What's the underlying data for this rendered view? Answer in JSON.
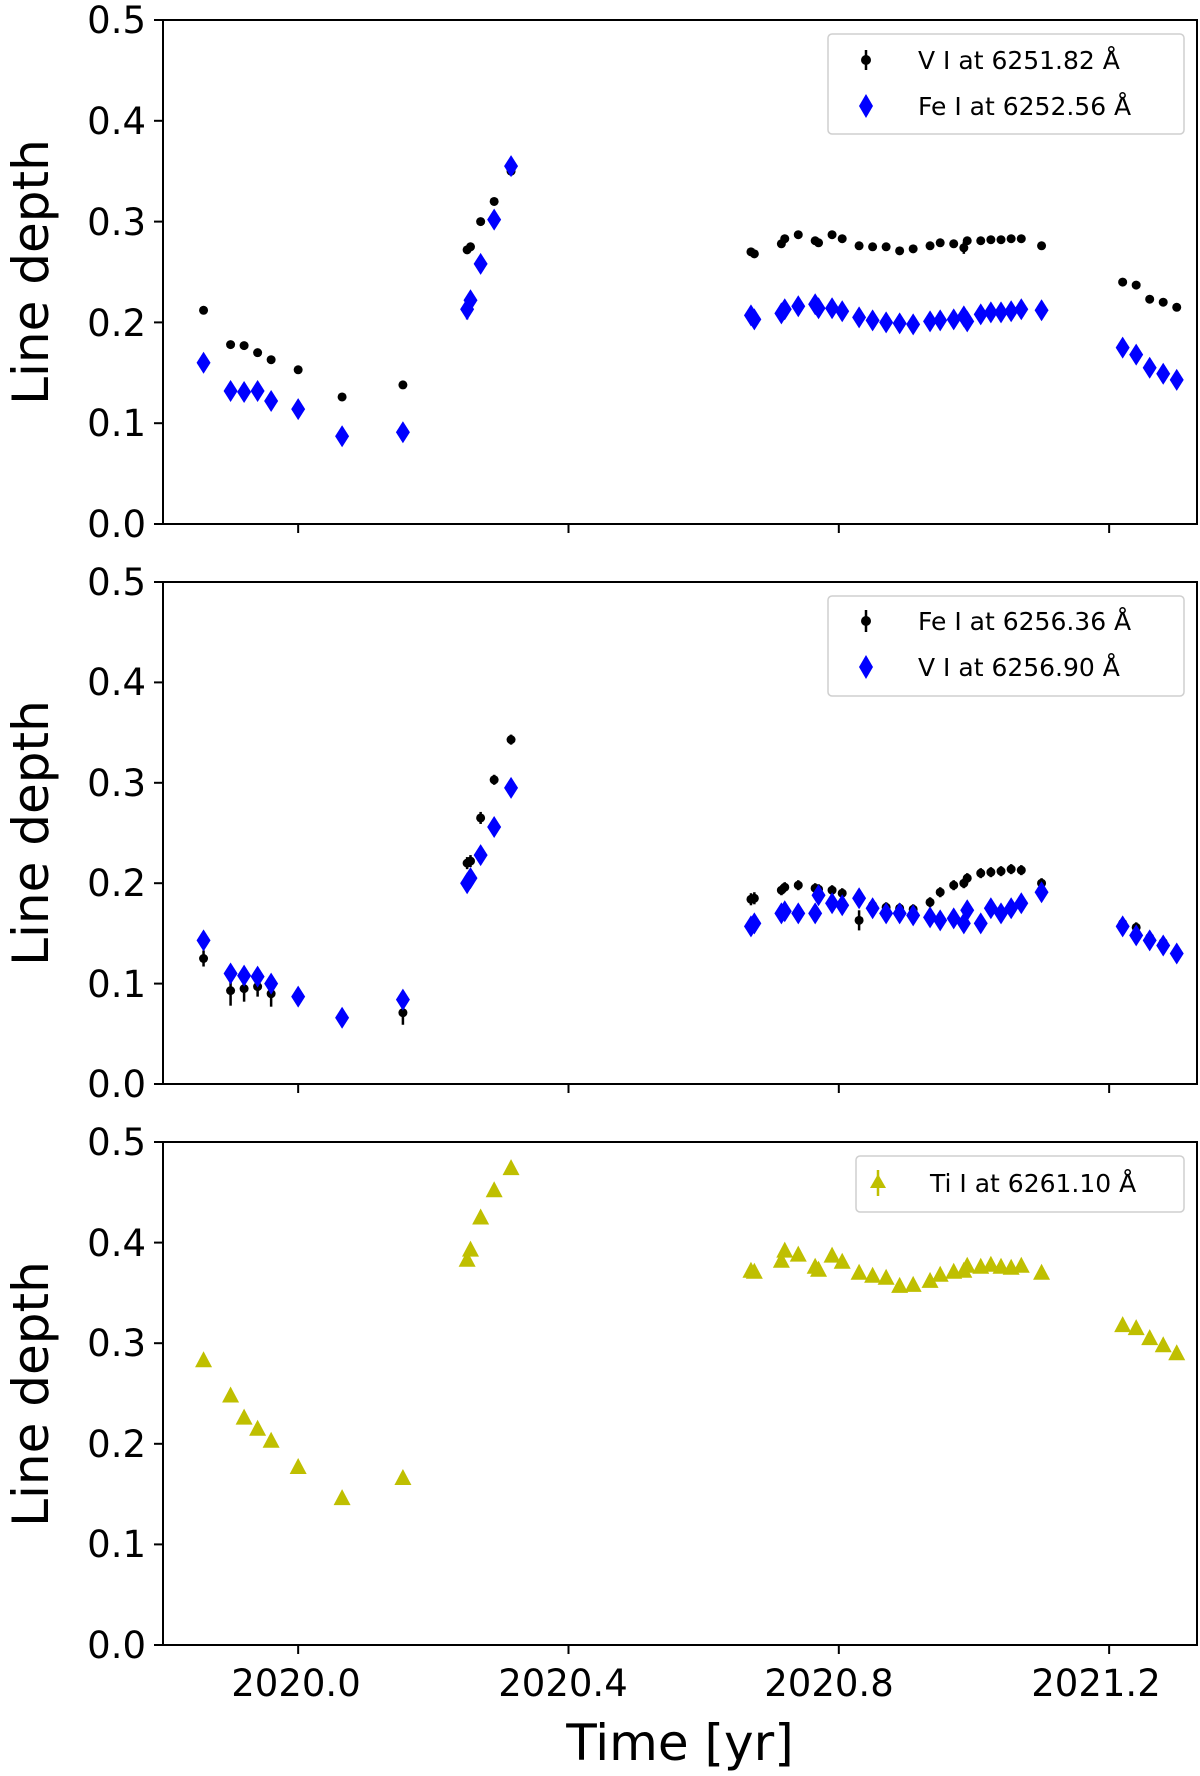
{
  "chart_data": [
    {
      "type": "scatter",
      "title": "",
      "xlabel": "",
      "ylabel": "Line depth",
      "ylim": [
        0.0,
        0.5
      ],
      "xlim": [
        2019.8,
        2021.33
      ],
      "xticks": [
        2020.0,
        2020.4,
        2020.8,
        2021.2
      ],
      "xtick_labels": [
        "",
        "",
        "",
        ""
      ],
      "yticks": [
        0.0,
        0.1,
        0.2,
        0.3,
        0.4,
        0.5
      ],
      "ytick_labels": [
        "0.0",
        "0.1",
        "0.2",
        "0.3",
        "0.4",
        "0.5"
      ],
      "legend_position": "top-right",
      "series": [
        {
          "name": "V I at 6251.82 Å",
          "marker": "circle",
          "color": "#000000",
          "x": [
            2019.86,
            2019.9,
            2019.92,
            2019.94,
            2019.96,
            2020.0,
            2020.065,
            2020.155,
            2020.25,
            2020.255,
            2020.27,
            2020.29,
            2020.315,
            2020.67,
            2020.675,
            2020.715,
            2020.72,
            2020.74,
            2020.765,
            2020.77,
            2020.79,
            2020.805,
            2020.83,
            2020.85,
            2020.87,
            2020.89,
            2020.91,
            2020.935,
            2020.95,
            2020.97,
            2020.985,
            2020.99,
            2021.01,
            2021.025,
            2021.04,
            2021.055,
            2021.07,
            2021.1,
            2021.22,
            2021.24,
            2021.26,
            2021.28,
            2021.3
          ],
          "y": [
            0.212,
            0.178,
            0.177,
            0.17,
            0.163,
            0.153,
            0.126,
            0.138,
            0.272,
            0.275,
            0.3,
            0.32,
            0.35,
            0.27,
            0.268,
            0.278,
            0.283,
            0.287,
            0.281,
            0.279,
            0.287,
            0.283,
            0.276,
            0.275,
            0.275,
            0.271,
            0.273,
            0.276,
            0.279,
            0.278,
            0.274,
            0.281,
            0.281,
            0.282,
            0.282,
            0.283,
            0.283,
            0.276,
            0.24,
            0.237,
            0.223,
            0.22,
            0.215
          ],
          "yerr": [
            0.003,
            0.003,
            0.003,
            0.003,
            0.003,
            0.003,
            0.003,
            0.003,
            0.004,
            0.004,
            0.003,
            0.003,
            0.003,
            0.003,
            0.003,
            0.003,
            0.003,
            0.003,
            0.003,
            0.003,
            0.003,
            0.003,
            0.003,
            0.003,
            0.003,
            0.003,
            0.003,
            0.003,
            0.003,
            0.003,
            0.006,
            0.003,
            0.003,
            0.003,
            0.003,
            0.003,
            0.003,
            0.003,
            0.003,
            0.003,
            0.003,
            0.003,
            0.003
          ]
        },
        {
          "name": "Fe I at 6252.56 Å",
          "marker": "diamond",
          "color": "#0000ff",
          "x": [
            2019.86,
            2019.9,
            2019.92,
            2019.94,
            2019.96,
            2020.0,
            2020.065,
            2020.155,
            2020.25,
            2020.255,
            2020.27,
            2020.29,
            2020.315,
            2020.67,
            2020.675,
            2020.715,
            2020.72,
            2020.74,
            2020.765,
            2020.77,
            2020.79,
            2020.805,
            2020.83,
            2020.85,
            2020.87,
            2020.89,
            2020.91,
            2020.935,
            2020.95,
            2020.97,
            2020.985,
            2020.99,
            2021.01,
            2021.025,
            2021.04,
            2021.055,
            2021.07,
            2021.1,
            2021.22,
            2021.24,
            2021.26,
            2021.28,
            2021.3
          ],
          "y": [
            0.16,
            0.132,
            0.131,
            0.132,
            0.122,
            0.114,
            0.087,
            0.091,
            0.213,
            0.222,
            0.258,
            0.302,
            0.355,
            0.207,
            0.203,
            0.209,
            0.213,
            0.216,
            0.218,
            0.214,
            0.214,
            0.211,
            0.205,
            0.202,
            0.2,
            0.199,
            0.198,
            0.201,
            0.202,
            0.203,
            0.206,
            0.201,
            0.208,
            0.21,
            0.21,
            0.211,
            0.213,
            0.212,
            0.175,
            0.168,
            0.155,
            0.149,
            0.143
          ],
          "yerr": [
            0.005,
            0.005,
            0.005,
            0.005,
            0.005,
            0.005,
            0.005,
            0.005,
            0.01,
            0.007,
            0.005,
            0.005,
            0.005,
            0.005,
            0.005,
            0.005,
            0.005,
            0.005,
            0.005,
            0.005,
            0.005,
            0.005,
            0.005,
            0.005,
            0.005,
            0.005,
            0.005,
            0.005,
            0.005,
            0.005,
            0.008,
            0.005,
            0.005,
            0.005,
            0.005,
            0.005,
            0.005,
            0.005,
            0.005,
            0.005,
            0.005,
            0.005,
            0.005
          ]
        }
      ]
    },
    {
      "type": "scatter",
      "title": "",
      "xlabel": "",
      "ylabel": "Line depth",
      "ylim": [
        0.0,
        0.5
      ],
      "xlim": [
        2019.8,
        2021.33
      ],
      "xticks": [
        2020.0,
        2020.4,
        2020.8,
        2021.2
      ],
      "xtick_labels": [
        "",
        "",
        "",
        ""
      ],
      "yticks": [
        0.0,
        0.1,
        0.2,
        0.3,
        0.4,
        0.5
      ],
      "ytick_labels": [
        "0.0",
        "0.1",
        "0.2",
        "0.3",
        "0.4",
        "0.5"
      ],
      "legend_position": "top-right",
      "series": [
        {
          "name": "Fe I at 6256.36 Å",
          "marker": "circle",
          "color": "#000000",
          "x": [
            2019.86,
            2019.9,
            2019.92,
            2019.94,
            2019.96,
            2020.0,
            2020.065,
            2020.155,
            2020.25,
            2020.255,
            2020.27,
            2020.29,
            2020.315,
            2020.67,
            2020.675,
            2020.715,
            2020.72,
            2020.74,
            2020.765,
            2020.77,
            2020.79,
            2020.805,
            2020.83,
            2020.85,
            2020.87,
            2020.89,
            2020.91,
            2020.935,
            2020.95,
            2020.97,
            2020.985,
            2020.99,
            2021.01,
            2021.025,
            2021.04,
            2021.055,
            2021.07,
            2021.1,
            2021.22,
            2021.24,
            2021.26,
            2021.28,
            2021.3
          ],
          "y": [
            0.125,
            0.093,
            0.095,
            0.097,
            0.09,
            0.087,
            0.065,
            0.071,
            0.22,
            0.222,
            0.265,
            0.303,
            0.343,
            0.184,
            0.185,
            0.193,
            0.196,
            0.198,
            0.195,
            0.194,
            0.193,
            0.19,
            0.163,
            0.178,
            0.176,
            0.175,
            0.174,
            0.181,
            0.191,
            0.198,
            0.2,
            0.205,
            0.21,
            0.211,
            0.212,
            0.214,
            0.213,
            0.2,
            0.16,
            0.156,
            0.146,
            0.141,
            0.13
          ],
          "yerr": [
            0.008,
            0.015,
            0.013,
            0.01,
            0.013,
            0.008,
            0.006,
            0.012,
            0.006,
            0.006,
            0.006,
            0.005,
            0.005,
            0.006,
            0.006,
            0.005,
            0.005,
            0.005,
            0.005,
            0.005,
            0.005,
            0.005,
            0.01,
            0.005,
            0.005,
            0.005,
            0.005,
            0.005,
            0.005,
            0.005,
            0.005,
            0.005,
            0.005,
            0.005,
            0.005,
            0.005,
            0.005,
            0.005,
            0.005,
            0.005,
            0.005,
            0.005,
            0.005
          ]
        },
        {
          "name": "V I at 6256.90 Å",
          "marker": "diamond",
          "color": "#0000ff",
          "x": [
            2019.86,
            2019.9,
            2019.92,
            2019.94,
            2019.96,
            2020.0,
            2020.065,
            2020.155,
            2020.25,
            2020.255,
            2020.27,
            2020.29,
            2020.315,
            2020.67,
            2020.675,
            2020.715,
            2020.72,
            2020.74,
            2020.765,
            2020.77,
            2020.79,
            2020.805,
            2020.83,
            2020.85,
            2020.87,
            2020.89,
            2020.91,
            2020.935,
            2020.95,
            2020.97,
            2020.985,
            2020.99,
            2021.01,
            2021.025,
            2021.04,
            2021.055,
            2021.07,
            2021.1,
            2021.22,
            2021.24,
            2021.26,
            2021.28,
            2021.3
          ],
          "y": [
            0.143,
            0.11,
            0.108,
            0.107,
            0.1,
            0.087,
            0.066,
            0.084,
            0.2,
            0.205,
            0.228,
            0.256,
            0.295,
            0.157,
            0.16,
            0.17,
            0.172,
            0.17,
            0.17,
            0.188,
            0.18,
            0.178,
            0.185,
            0.175,
            0.17,
            0.17,
            0.168,
            0.166,
            0.163,
            0.165,
            0.16,
            0.173,
            0.16,
            0.175,
            0.17,
            0.175,
            0.18,
            0.191,
            0.157,
            0.148,
            0.143,
            0.138,
            0.13
          ]
        }
      ]
    },
    {
      "type": "scatter",
      "title": "",
      "xlabel": "Time [yr]",
      "ylabel": "Line depth",
      "ylim": [
        0.0,
        0.5
      ],
      "xlim": [
        2019.8,
        2021.33
      ],
      "xticks": [
        2020.0,
        2020.4,
        2020.8,
        2021.2
      ],
      "xtick_labels": [
        "2020.0",
        "2020.4",
        "2020.8",
        "2021.2"
      ],
      "yticks": [
        0.0,
        0.1,
        0.2,
        0.3,
        0.4,
        0.5
      ],
      "ytick_labels": [
        "0.0",
        "0.1",
        "0.2",
        "0.3",
        "0.4",
        "0.5"
      ],
      "legend_position": "top-right",
      "series": [
        {
          "name": "Ti I at 6261.10 Å",
          "marker": "triangle",
          "color": "#bfbf00",
          "x": [
            2019.86,
            2019.9,
            2019.92,
            2019.94,
            2019.96,
            2020.0,
            2020.065,
            2020.155,
            2020.25,
            2020.255,
            2020.27,
            2020.29,
            2020.315,
            2020.67,
            2020.675,
            2020.715,
            2020.72,
            2020.74,
            2020.765,
            2020.77,
            2020.79,
            2020.805,
            2020.83,
            2020.85,
            2020.87,
            2020.89,
            2020.91,
            2020.935,
            2020.95,
            2020.97,
            2020.985,
            2020.99,
            2021.01,
            2021.025,
            2021.04,
            2021.055,
            2021.07,
            2021.1,
            2021.22,
            2021.24,
            2021.26,
            2021.28,
            2021.3
          ],
          "y": [
            0.283,
            0.248,
            0.226,
            0.215,
            0.203,
            0.177,
            0.146,
            0.166,
            0.383,
            0.393,
            0.425,
            0.452,
            0.474,
            0.372,
            0.371,
            0.382,
            0.392,
            0.388,
            0.376,
            0.373,
            0.387,
            0.381,
            0.37,
            0.367,
            0.365,
            0.357,
            0.358,
            0.362,
            0.368,
            0.371,
            0.372,
            0.377,
            0.376,
            0.378,
            0.376,
            0.375,
            0.377,
            0.37,
            0.318,
            0.315,
            0.305,
            0.298,
            0.29
          ]
        }
      ]
    }
  ]
}
